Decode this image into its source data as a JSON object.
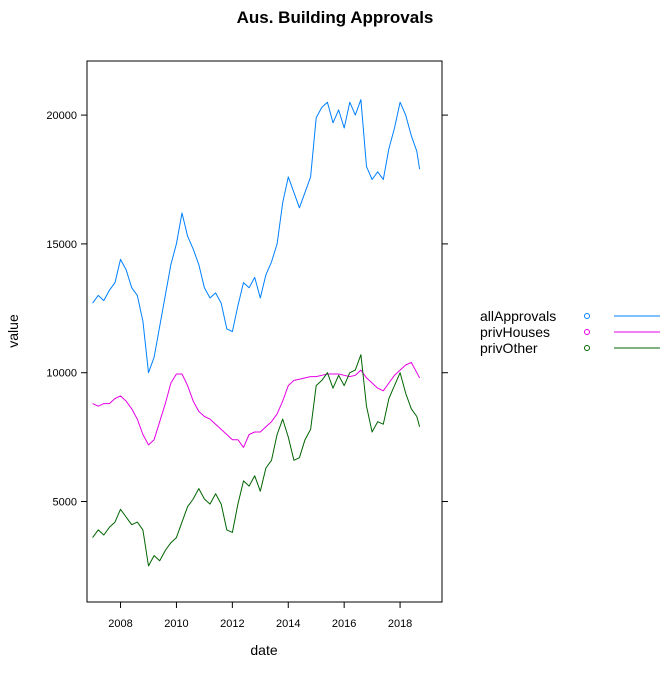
{
  "chart_data": {
    "type": "line",
    "title": "Aus. Building Approvals",
    "xlabel": "date",
    "ylabel": "value",
    "xlim": [
      2006.8,
      2019.5
    ],
    "ylim": [
      1100,
      22100
    ],
    "xticks": [
      2008,
      2010,
      2012,
      2014,
      2016,
      2018
    ],
    "yticks": [
      5000,
      10000,
      15000,
      20000
    ],
    "grid": false,
    "legend_position": "right",
    "series": [
      {
        "name": "allApprovals",
        "color": "#0080ff",
        "x": [
          2007.0,
          2007.2,
          2007.4,
          2007.6,
          2007.8,
          2008.0,
          2008.2,
          2008.4,
          2008.6,
          2008.8,
          2009.0,
          2009.2,
          2009.4,
          2009.6,
          2009.8,
          2010.0,
          2010.2,
          2010.4,
          2010.6,
          2010.8,
          2011.0,
          2011.2,
          2011.4,
          2011.6,
          2011.8,
          2012.0,
          2012.2,
          2012.4,
          2012.6,
          2012.8,
          2013.0,
          2013.2,
          2013.4,
          2013.6,
          2013.8,
          2014.0,
          2014.2,
          2014.4,
          2014.6,
          2014.8,
          2015.0,
          2015.2,
          2015.4,
          2015.6,
          2015.8,
          2016.0,
          2016.2,
          2016.4,
          2016.6,
          2016.8,
          2017.0,
          2017.2,
          2017.4,
          2017.6,
          2017.8,
          2018.0,
          2018.2,
          2018.4,
          2018.6,
          2018.7
        ],
        "y": [
          12700,
          13000,
          12800,
          13200,
          13500,
          14400,
          14000,
          13300,
          13000,
          12000,
          10000,
          10600,
          11800,
          13000,
          14200,
          15000,
          16200,
          15300,
          14800,
          14200,
          13300,
          12900,
          13100,
          12700,
          11700,
          11600,
          12600,
          13500,
          13300,
          13700,
          12900,
          13800,
          14300,
          15000,
          16600,
          17600,
          17000,
          16400,
          17000,
          17600,
          19900,
          20300,
          20500,
          19700,
          20200,
          19500,
          20500,
          20000,
          20600,
          18000,
          17500,
          17800,
          17500,
          18700,
          19500,
          20500,
          20000,
          19200,
          18600,
          17900
        ]
      },
      {
        "name": "privHouses",
        "color": "#e600e6",
        "x": [
          2007.0,
          2007.2,
          2007.4,
          2007.6,
          2007.8,
          2008.0,
          2008.2,
          2008.4,
          2008.6,
          2008.8,
          2009.0,
          2009.2,
          2009.4,
          2009.6,
          2009.8,
          2010.0,
          2010.2,
          2010.4,
          2010.6,
          2010.8,
          2011.0,
          2011.2,
          2011.4,
          2011.6,
          2011.8,
          2012.0,
          2012.2,
          2012.4,
          2012.6,
          2012.8,
          2013.0,
          2013.2,
          2013.4,
          2013.6,
          2013.8,
          2014.0,
          2014.2,
          2014.4,
          2014.6,
          2014.8,
          2015.0,
          2015.2,
          2015.4,
          2015.6,
          2015.8,
          2016.0,
          2016.2,
          2016.4,
          2016.6,
          2016.8,
          2017.0,
          2017.2,
          2017.4,
          2017.6,
          2017.8,
          2018.0,
          2018.2,
          2018.4,
          2018.6,
          2018.7
        ],
        "y": [
          8800,
          8700,
          8800,
          8800,
          9000,
          9100,
          8900,
          8600,
          8200,
          7600,
          7200,
          7400,
          8100,
          8800,
          9600,
          9950,
          9950,
          9500,
          8900,
          8500,
          8300,
          8200,
          8000,
          7800,
          7600,
          7400,
          7400,
          7100,
          7600,
          7700,
          7700,
          7900,
          8100,
          8400,
          8900,
          9500,
          9700,
          9750,
          9800,
          9850,
          9850,
          9900,
          9950,
          9950,
          9950,
          9900,
          9850,
          9900,
          10100,
          9800,
          9600,
          9400,
          9300,
          9600,
          9900,
          10100,
          10300,
          10400,
          10000,
          9800
        ]
      },
      {
        "name": "privOther",
        "color": "#006400",
        "x": [
          2007.0,
          2007.2,
          2007.4,
          2007.6,
          2007.8,
          2008.0,
          2008.2,
          2008.4,
          2008.6,
          2008.8,
          2009.0,
          2009.2,
          2009.4,
          2009.6,
          2009.8,
          2010.0,
          2010.2,
          2010.4,
          2010.6,
          2010.8,
          2011.0,
          2011.2,
          2011.4,
          2011.6,
          2011.8,
          2012.0,
          2012.2,
          2012.4,
          2012.6,
          2012.8,
          2013.0,
          2013.2,
          2013.4,
          2013.6,
          2013.8,
          2014.0,
          2014.2,
          2014.4,
          2014.6,
          2014.8,
          2015.0,
          2015.2,
          2015.4,
          2015.6,
          2015.8,
          2016.0,
          2016.2,
          2016.4,
          2016.6,
          2016.8,
          2017.0,
          2017.2,
          2017.4,
          2017.6,
          2017.8,
          2018.0,
          2018.2,
          2018.4,
          2018.6,
          2018.7
        ],
        "y": [
          3600,
          3900,
          3700,
          4000,
          4200,
          4700,
          4400,
          4100,
          4200,
          3900,
          2500,
          2900,
          2700,
          3100,
          3400,
          3600,
          4200,
          4800,
          5100,
          5500,
          5100,
          4900,
          5300,
          4900,
          3900,
          3800,
          4900,
          5800,
          5600,
          6000,
          5400,
          6300,
          6600,
          7600,
          8200,
          7500,
          6600,
          6700,
          7400,
          7800,
          9500,
          9700,
          10000,
          9400,
          9900,
          9500,
          10000,
          10100,
          10700,
          8700,
          7700,
          8100,
          8000,
          9000,
          9500,
          10000,
          9200,
          8600,
          8300,
          7900
        ]
      }
    ]
  }
}
